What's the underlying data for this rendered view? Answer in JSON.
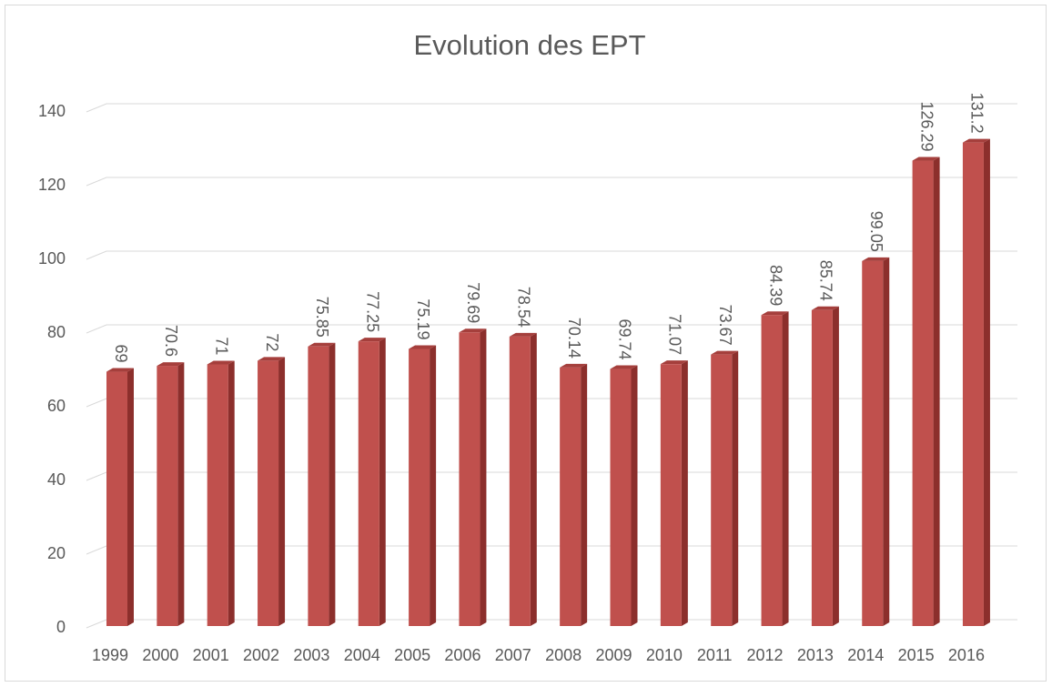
{
  "chart_data": {
    "type": "bar",
    "title": "Evolution des EPT",
    "categories": [
      "1999",
      "2000",
      "2001",
      "2002",
      "2003",
      "2004",
      "2005",
      "2006",
      "2007",
      "2008",
      "2009",
      "2010",
      "2011",
      "2012",
      "2013",
      "2014",
      "2015",
      "2016"
    ],
    "values": [
      69,
      70.6,
      71,
      72,
      75.85,
      77.25,
      75.19,
      79.69,
      78.54,
      70.14,
      69.74,
      71.07,
      73.67,
      84.39,
      85.74,
      99.05,
      126.29,
      131.2
    ],
    "color": "#c0504d",
    "ylim": [
      0,
      140
    ],
    "yticks": [
      0,
      20,
      40,
      60,
      80,
      100,
      120,
      140
    ],
    "grid": true
  }
}
